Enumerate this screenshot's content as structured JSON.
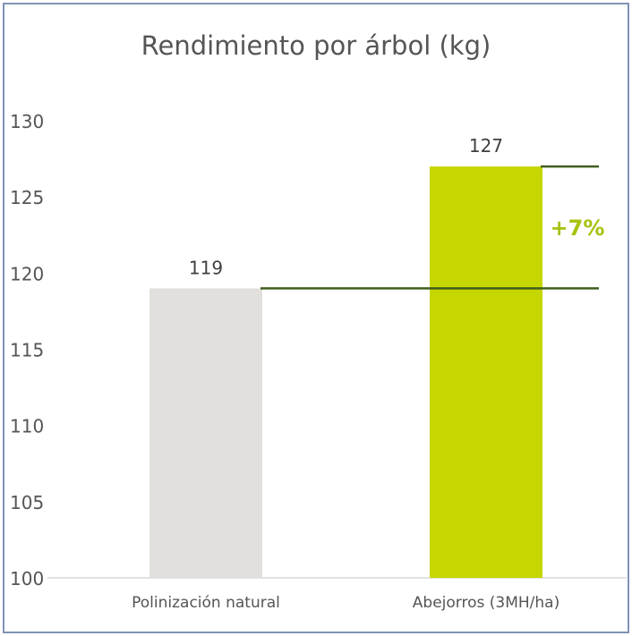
{
  "chart_data": {
    "type": "bar",
    "title": "Rendimiento por árbol (kg)",
    "categories": [
      "Polinización natural",
      "Abejorros (3MH/ha)"
    ],
    "values": [
      119,
      127
    ],
    "bar_colors": [
      "#e1e0dd",
      "#c6d600"
    ],
    "yticks": [
      100,
      105,
      110,
      115,
      120,
      125,
      130
    ],
    "ylim": [
      100,
      130
    ],
    "xlabel": "",
    "ylabel": "",
    "grid": false,
    "legend": "none",
    "annotation": {
      "text": "+7%",
      "color": "#a8c10b"
    },
    "reference_line_color": "#3f5e1e"
  }
}
